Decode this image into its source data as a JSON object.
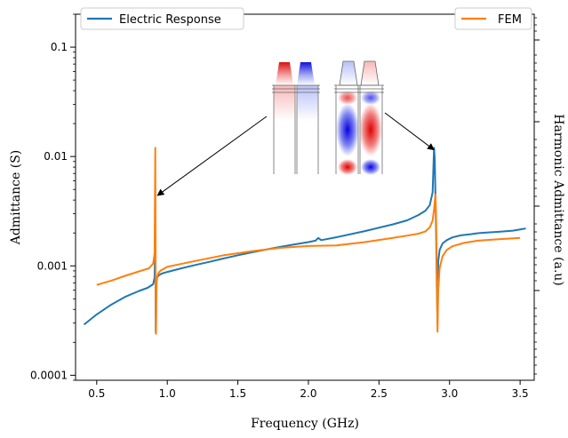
{
  "chart_data": {
    "type": "line",
    "xlabel": "Frequency (GHz)",
    "ylabel": "Admittance (S)",
    "y2label": "Harmonic Admittance (a.u)",
    "xlim": [
      0.35,
      3.6
    ],
    "ylim": [
      9e-05,
      0.2
    ],
    "yscale": "log",
    "x_ticks": [
      0.5,
      1.0,
      1.5,
      2.0,
      2.5,
      3.0,
      3.5
    ],
    "x_tick_labels": [
      "0.5",
      "1.0",
      "1.5",
      "2.0",
      "2.5",
      "3.0",
      "3.5"
    ],
    "y_ticks": [
      0.0001,
      0.001,
      0.01,
      0.1
    ],
    "y_tick_labels": [
      "0.0001",
      "0.001",
      "0.01",
      "0.1"
    ],
    "grid": false,
    "legend": [
      "top-left",
      "top-right"
    ],
    "series": [
      {
        "name": "Electric Response",
        "color": "#1f77b4",
        "x": [
          0.41,
          0.5,
          0.6,
          0.7,
          0.8,
          0.86,
          0.9,
          0.91,
          0.915,
          0.918,
          0.92,
          0.922,
          0.925,
          0.93,
          0.94,
          0.96,
          1.0,
          1.1,
          1.2,
          1.3,
          1.4,
          1.5,
          1.6,
          1.7,
          1.8,
          1.9,
          2.0,
          2.05,
          2.07,
          2.09,
          2.2,
          2.4,
          2.6,
          2.7,
          2.78,
          2.83,
          2.86,
          2.88,
          2.89,
          2.895,
          2.9,
          2.905,
          2.91,
          2.915,
          2.92,
          2.93,
          2.95,
          2.98,
          3.02,
          3.08,
          3.15,
          3.2,
          3.25,
          3.35,
          3.45,
          3.54
        ],
        "y": [
          0.00029,
          0.00036,
          0.00044,
          0.00052,
          0.00059,
          0.00063,
          0.00068,
          0.00078,
          0.0018,
          0.00025,
          0.00024,
          0.00065,
          0.00075,
          0.00079,
          0.00082,
          0.00085,
          0.00088,
          0.00095,
          0.00102,
          0.00109,
          0.00117,
          0.00125,
          0.00133,
          0.00141,
          0.00149,
          0.00157,
          0.00165,
          0.0017,
          0.0018,
          0.00172,
          0.00183,
          0.00208,
          0.0024,
          0.00261,
          0.00292,
          0.0032,
          0.0036,
          0.0047,
          0.012,
          0.0095,
          0.0042,
          0.0018,
          0.00065,
          0.0003,
          0.0011,
          0.0014,
          0.0016,
          0.00172,
          0.00182,
          0.0019,
          0.00195,
          0.00199,
          0.00201,
          0.00205,
          0.0021,
          0.0022
        ]
      },
      {
        "name": "FEM",
        "color": "#ff7f0e",
        "x": [
          0.5,
          0.6,
          0.7,
          0.8,
          0.87,
          0.9,
          0.91,
          0.915,
          0.918,
          0.92,
          0.922,
          0.925,
          0.935,
          0.95,
          1.0,
          1.2,
          1.4,
          1.6,
          1.8,
          2.0,
          2.2,
          2.4,
          2.6,
          2.7,
          2.78,
          2.83,
          2.86,
          2.88,
          2.89,
          2.9,
          2.905,
          2.91,
          2.915,
          2.92,
          2.93,
          2.95,
          2.98,
          3.02,
          3.1,
          3.2,
          3.35,
          3.5
        ],
        "y": [
          0.00067,
          0.00073,
          0.00081,
          0.00089,
          0.00095,
          0.00105,
          0.0013,
          0.012,
          0.0005,
          0.00024,
          0.00052,
          0.00075,
          0.00085,
          0.0009,
          0.00098,
          0.00111,
          0.00125,
          0.00136,
          0.00146,
          0.00152,
          0.00154,
          0.00165,
          0.0018,
          0.00189,
          0.00197,
          0.00207,
          0.00225,
          0.0026,
          0.0033,
          0.0045,
          0.0025,
          0.00095,
          0.00025,
          0.0006,
          0.00095,
          0.00122,
          0.0014,
          0.00151,
          0.00162,
          0.0017,
          0.00175,
          0.0018
        ]
      }
    ],
    "annotations": [
      {
        "type": "arrow",
        "to_x": 0.93,
        "to_y": 0.0044
      },
      {
        "type": "arrow",
        "to_x": 2.89,
        "to_y": 0.0115
      }
    ]
  }
}
